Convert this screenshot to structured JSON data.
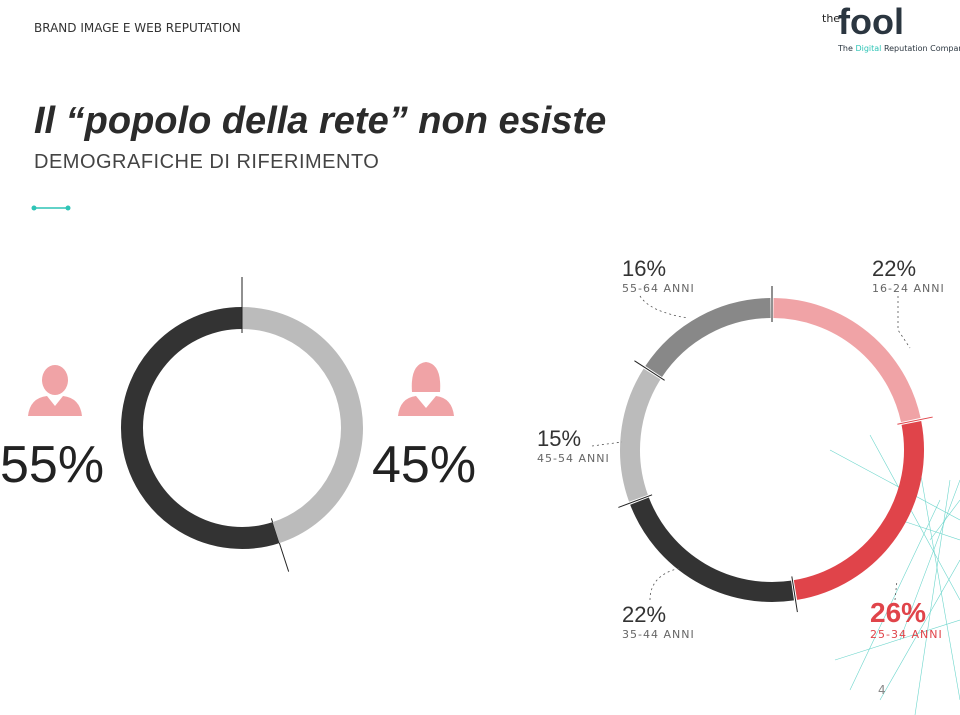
{
  "header": {
    "section": "BRAND IMAGE E WEB REPUTATION",
    "logo": {
      "prefix": "the",
      "name": "fool",
      "tagline": [
        "The",
        "Digital",
        "Reputation Company"
      ]
    }
  },
  "title": "Il “popolo della rete” non esiste",
  "subtitle": "DEMOGRAFICHE DI RIFERIMENTO",
  "page_number": "4",
  "chart_data": [
    {
      "type": "donut",
      "categories": [
        null,
        null
      ],
      "values": [
        55,
        45
      ],
      "value_labels": [
        "55%",
        "45%"
      ],
      "colors": [
        "#333333",
        "#bbbbbb"
      ]
    },
    {
      "type": "donut",
      "categories": [
        "16-24 ANNI",
        "25-34 ANNI",
        "35-44 ANNI",
        "45-54 ANNI",
        "55-64 ANNI"
      ],
      "values": [
        22,
        26,
        22,
        15,
        16
      ],
      "value_labels": [
        "22%",
        "26%",
        "22%",
        "15%",
        "16%"
      ],
      "colors": [
        "#f0a3a6",
        "#e0444a",
        "#333333",
        "#bbbbbb",
        "#888888"
      ]
    }
  ]
}
